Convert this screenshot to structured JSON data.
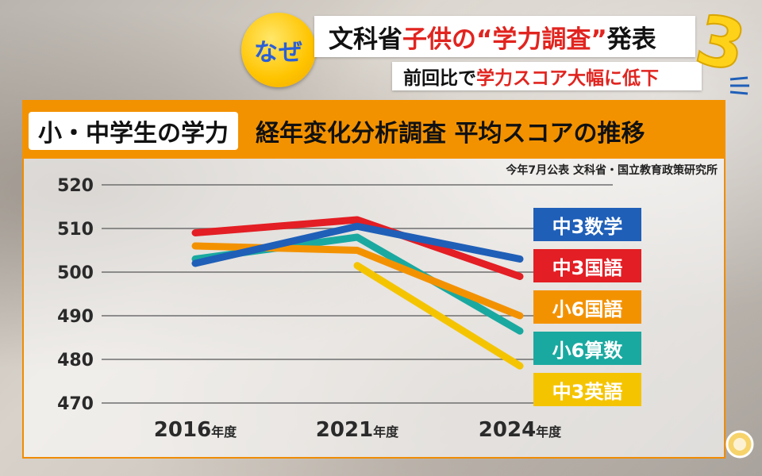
{
  "header": {
    "badge": "なぜ",
    "headline_part1": "文科省 ",
    "headline_red": "子供の“学力調査”",
    "headline_part2": "発表",
    "subline_part1": "前回比で",
    "subline_red": "学力スコア大幅に低下"
  },
  "chart_title": {
    "boxed": "小・中学生の学力",
    "rest": "経年変化分析調査 平均スコアの推移"
  },
  "source": "今年7月公表 文科省・国立教育政策研究所",
  "colors": {
    "accent": "#f39200",
    "headline_red": "#e1241f",
    "badge_yellow": "#ffc400",
    "badge_text": "#2a5fd8"
  },
  "chart_data": {
    "type": "line",
    "title": "小・中学生の学力 経年変化分析調査 平均スコアの推移",
    "x_labels": [
      {
        "year": "2016",
        "suffix": "年度"
      },
      {
        "year": "2021",
        "suffix": "年度"
      },
      {
        "year": "2024",
        "suffix": "年度"
      }
    ],
    "categories": [
      "2016年度",
      "2021年度",
      "2024年度"
    ],
    "ylim": [
      470,
      520
    ],
    "y_ticks": [
      520,
      510,
      500,
      490,
      480,
      470
    ],
    "grid": true,
    "legend_position": "right",
    "series": [
      {
        "name": "中3数学",
        "color": "#1f5fb8",
        "values": [
          502,
          510.5,
          503
        ]
      },
      {
        "name": "中3国語",
        "color": "#e31e24",
        "values": [
          509,
          512,
          499
        ]
      },
      {
        "name": "小6国語",
        "color": "#f39200",
        "values": [
          506,
          505,
          490
        ]
      },
      {
        "name": "小6算数",
        "color": "#1aa9a0",
        "values": [
          503,
          508,
          486.5
        ]
      },
      {
        "name": "中3英語",
        "color": "#f5c400",
        "values": [
          null,
          501.5,
          478.5
        ]
      }
    ]
  }
}
